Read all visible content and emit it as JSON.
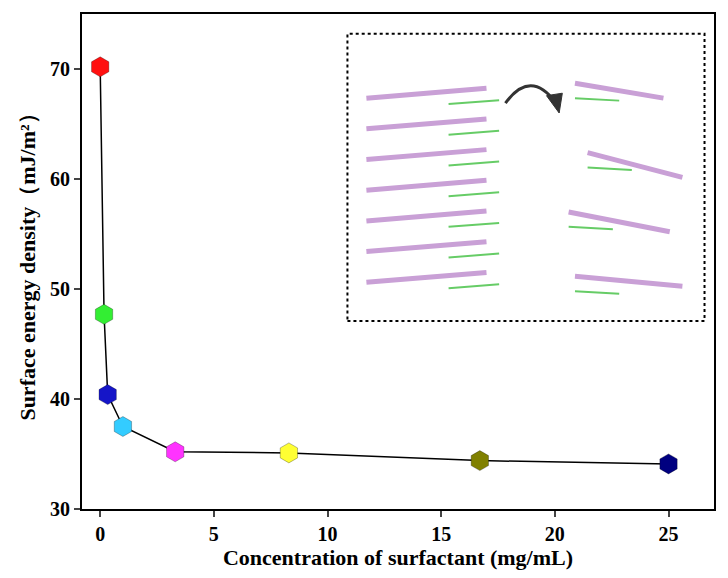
{
  "chart_data": {
    "type": "line",
    "x_label": "Concentration of surfactant (mg/mL)",
    "y_label": "Surface energy density（mJ/m²）",
    "x": [
      0,
      0.17,
      0.33,
      1,
      3.3,
      8.3,
      16.7,
      25
    ],
    "values": [
      70.2,
      47.7,
      40.4,
      37.5,
      35.2,
      35.1,
      34.4,
      34.1
    ],
    "color": "#000000",
    "colors": [
      "#ff1010",
      "#33ee33",
      "#1515c8",
      "#33ccff",
      "#ff33ff",
      "#ffff33",
      "#808000",
      "#000080"
    ],
    "marker": "hexagon",
    "line_style": "solid",
    "xlim": [
      -0.8,
      27
    ],
    "ylim": [
      30,
      75
    ],
    "xticks": [
      0,
      5,
      10,
      15,
      20,
      25
    ],
    "yticks": [
      30,
      40,
      50,
      60,
      70
    ],
    "grid": false
  }
}
